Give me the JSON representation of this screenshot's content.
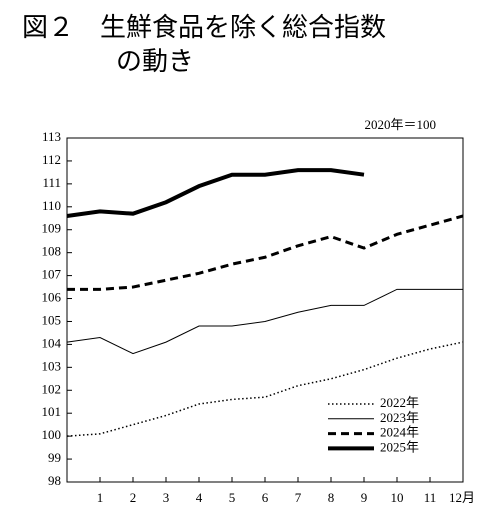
{
  "chart_data": {
    "type": "line",
    "title": [
      "図２　生鮮食品を除く総合指数",
      "の動き"
    ],
    "annotation": "2020年＝100",
    "x": [
      0,
      1,
      2,
      3,
      4,
      5,
      6,
      7,
      8,
      9,
      10,
      11,
      12
    ],
    "xlim": [
      0,
      12
    ],
    "xticks": [
      1,
      2,
      3,
      4,
      5,
      6,
      7,
      8,
      9,
      10,
      11,
      {
        "value": 12,
        "label": "12月"
      }
    ],
    "ylim": [
      98,
      113
    ],
    "yticks": [
      98,
      99,
      100,
      101,
      102,
      103,
      104,
      105,
      106,
      107,
      108,
      109,
      110,
      111,
      112,
      113
    ],
    "legend": "lower right",
    "series": [
      {
        "name": "2022年",
        "color": "#000000",
        "style": "dotted",
        "width": 1.5,
        "values": [
          100.0,
          100.1,
          100.5,
          100.9,
          101.4,
          101.6,
          101.7,
          102.2,
          102.5,
          102.9,
          103.4,
          103.8,
          104.1
        ]
      },
      {
        "name": "2023年",
        "color": "#000000",
        "style": "solid",
        "width": 1,
        "values": [
          104.1,
          104.3,
          103.6,
          104.1,
          104.8,
          104.8,
          105.0,
          105.4,
          105.7,
          105.7,
          106.4,
          106.4,
          106.4
        ]
      },
      {
        "name": "2024年",
        "color": "#000000",
        "style": "dashed",
        "width": 3,
        "values": [
          106.4,
          106.4,
          106.5,
          106.8,
          107.1,
          107.5,
          107.8,
          108.3,
          108.7,
          108.2,
          108.8,
          109.2,
          109.6
        ]
      },
      {
        "name": "2025年",
        "color": "#000000",
        "style": "solid",
        "width": 4,
        "values": [
          109.6,
          109.8,
          109.7,
          110.2,
          110.9,
          111.4,
          111.4,
          111.6,
          111.6,
          111.4,
          null,
          null,
          null
        ]
      }
    ]
  }
}
